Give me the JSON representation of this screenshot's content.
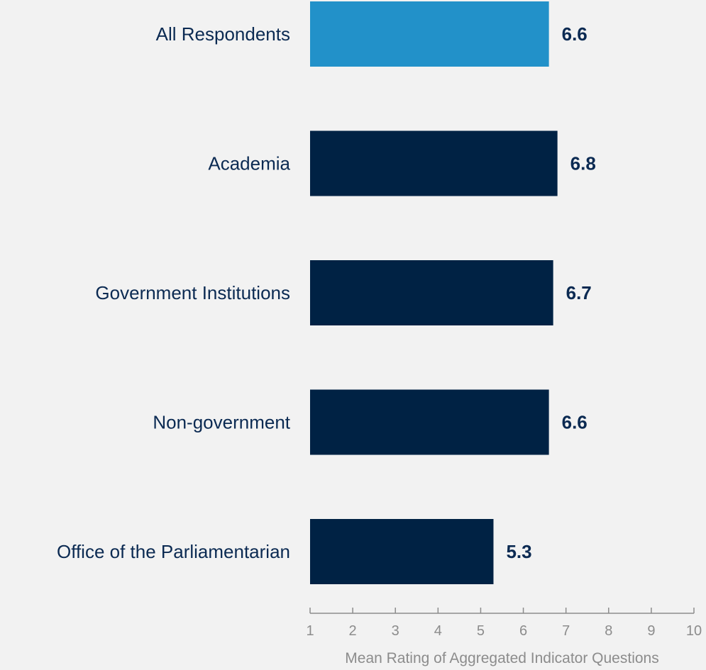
{
  "chart_data": {
    "type": "bar",
    "orientation": "horizontal",
    "categories": [
      "All Respondents",
      "Academia",
      "Government Institutions",
      "Non-government",
      "Office of the Parliamentarian"
    ],
    "values": [
      6.6,
      6.8,
      6.7,
      6.6,
      5.3
    ],
    "value_labels": [
      "6.6",
      "6.8",
      "6.7",
      "6.6",
      "5.3"
    ],
    "bar_colors": [
      "#2291c9",
      "#002244",
      "#002244",
      "#002244",
      "#002244"
    ],
    "xlabel": "Mean Rating of Aggregated Indicator Questions",
    "xlim": [
      1,
      10
    ],
    "xticks": [
      "1",
      "2",
      "3",
      "4",
      "5",
      "6",
      "7",
      "8",
      "9",
      "10"
    ],
    "grid": false,
    "legend": "none"
  }
}
